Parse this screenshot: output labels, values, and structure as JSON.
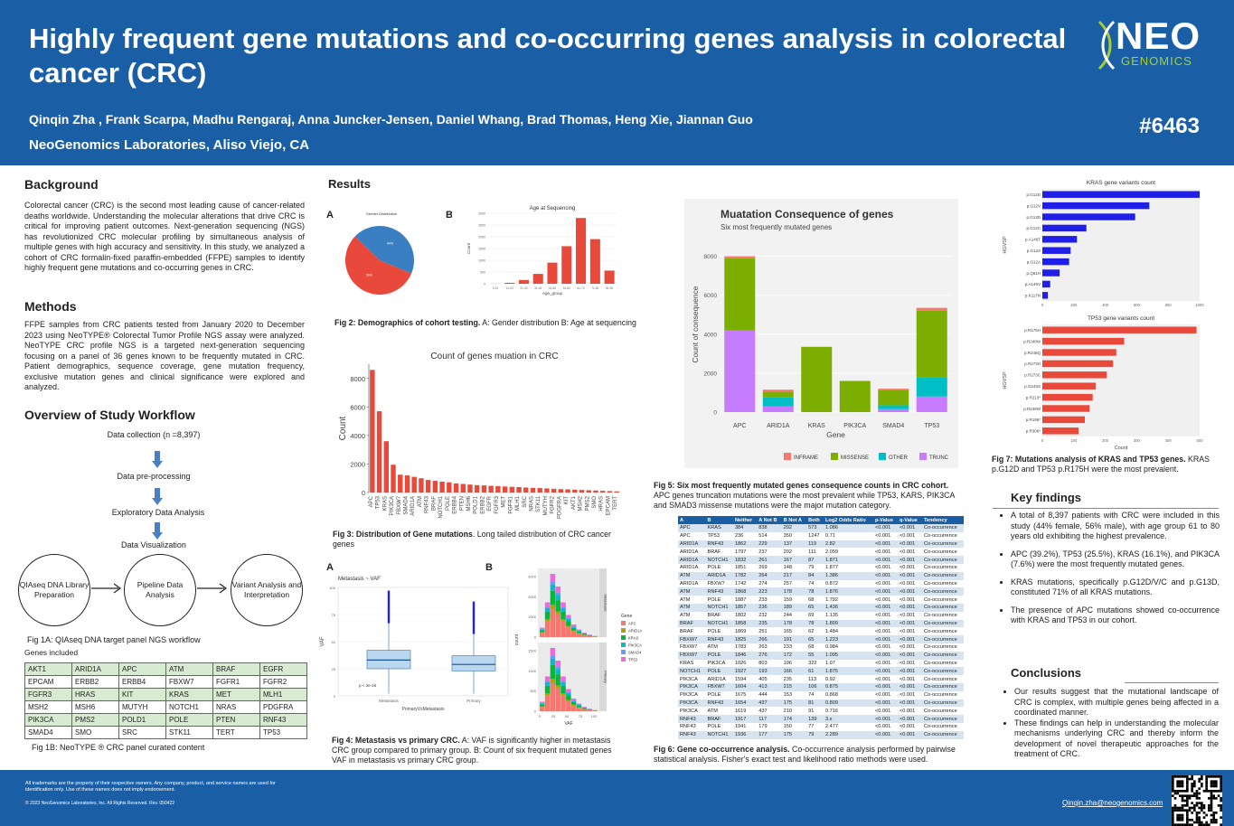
{
  "header": {
    "title": "Highly frequent gene mutations and co-occurring genes analysis in colorectal cancer (CRC)",
    "authors": "Qinqin Zha , Frank Scarpa, Madhu Rengaraj, Anna Juncker-Jensen, Daniel Whang, Brad Thomas, Heng Xie, Jiannan Guo",
    "affiliation": "NeoGenomics Laboratories, Aliso Viejo, CA",
    "poster_number": "#6463",
    "logo_main": "NEO",
    "logo_sub": "GENOMICS"
  },
  "background": {
    "heading": "Background",
    "text": "Colorectal cancer (CRC) is the second most leading cause of cancer-related deaths worldwide. Understanding the molecular alterations that drive CRC is critical for improving patient outcomes. Next-generation sequencing (NGS) has revolutionized CRC molecular profiling by simultaneous analysis of multiple genes with high accuracy and sensitivity. In this study, we analyzed a cohort of CRC formalin-fixed paraffin-embedded (FFPE) samples to identify highly frequent gene mutations and co-occurring genes in CRC."
  },
  "methods": {
    "heading": "Methods",
    "text": "FFPE samples from CRC patients tested from January 2020 to December 2023 using NeoTYPE® Colorectal Tumor Profile NGS assay were analyzed. NeoTYPE CRC profile NGS is a targeted next-generation sequencing focusing on a panel of 36 genes known to be frequently mutated in CRC. Patient demographics, sequence coverage, gene mutation frequency, exclusive mutation genes and clinical significance were explored and analyzed."
  },
  "workflow": {
    "heading": "Overview of Study Workflow",
    "steps": [
      "Data collection (n =8,397)",
      "Data pre-processing",
      "Exploratory Data Analysis",
      "Data Visualization"
    ],
    "circles": [
      "QIAseq DNA Library Preparation",
      "Pipeline Data Analysis",
      "Variant Analysis and Interpretation"
    ],
    "fig1a": "Fig 1A: QIAseq DNA target panel NGS workflow",
    "genes_heading": "Genes included",
    "genes": [
      [
        "AKT1",
        "ARID1A",
        "APC",
        "ATM",
        "BRAF",
        "EGFR"
      ],
      [
        "EPCAM",
        "ERBB2",
        "ERBB4",
        "FBXW7",
        "FGFR1",
        "FGFR2"
      ],
      [
        "FGFR3",
        "HRAS",
        "KIT",
        "KRAS",
        "MET",
        "MLH1"
      ],
      [
        "MSH2",
        "MSH6",
        "MUTYH",
        "NOTCH1",
        "NRAS",
        "PDGFRA"
      ],
      [
        "PIK3CA",
        "PMS2",
        "POLD1",
        "POLE",
        "PTEN",
        "RNF43"
      ],
      [
        "SMAD4",
        "SMO",
        "SRC",
        "STK11",
        "TERT",
        "TP53"
      ]
    ],
    "fig1b": "Fig 1B: NeoTYPE ® CRC panel curated content"
  },
  "results": {
    "heading": "Results",
    "fig2": {
      "label_a": "A",
      "label_b": "B",
      "pie_title": "Gender Distribution",
      "bar_title": "Age at Sequencing",
      "bar_xlabel": "Age_group",
      "bar_ylabel": "Count",
      "cap_bold": "Fig 2: Demographics of cohort testing.",
      "cap_rest": " A: Gender distribution B: Age at sequencing"
    },
    "fig3": {
      "title": "Count of genes muation in CRC",
      "ylabel": "Count",
      "cap_bold": "Fig 3: Distribution of Gene mutations",
      "cap_rest": ". Long tailed distribution of CRC cancer genes"
    },
    "fig4": {
      "label_a": "A",
      "label_b": "B",
      "box_title": "Metastasis ~ VAF",
      "box_xlabel": "PrimaryVsMetastasis",
      "box_ylabel": "VAF",
      "pval": "p < 2e-16",
      "cat_a": "Metastasis",
      "cat_b": "Primary",
      "hist_xlabel": "VAF",
      "hist_ylabel": "count",
      "strip_a": "Metastasis",
      "strip_b": "Primary",
      "legend_title": "Gene",
      "cap_bold": "Fig 4: Metastasis vs primary CRC.",
      "cap_rest": " A: VAF is significantly higher in metastasis CRC group compared to primary group. B: Count of six frequent mutated genes VAF in metastasis vs primary CRC group."
    },
    "fig5": {
      "title": "Muatation Consequence of genes",
      "subtitle": "Six most frequently mutated genes",
      "ylabel": "Count of consequence",
      "xlabel": "Gene",
      "legend_title": "Consequence",
      "cap_bold": "Fig 5: Six most frequently mutated genes consequence counts in CRC cohort.",
      "cap_rest": " APC genes truncation mutations were the most prevalent while TP53, KARS, PIK3CA and SMAD3 missense mutations were the major mutation category."
    },
    "fig6": {
      "headers": [
        "A",
        "B",
        "Neither",
        "A Not B",
        "B Not A",
        "Both",
        "Log2 Odds Ratio",
        "p-Value",
        "q-Value",
        "Tendency"
      ],
      "rows": [
        [
          "APC",
          "KRAS",
          "384",
          "838",
          "202",
          "573",
          "1.086",
          "<0.001",
          "<0.001",
          "Co-occurrence"
        ],
        [
          "APC",
          "TP53",
          "236",
          "514",
          "350",
          "1247",
          "0.71",
          "<0.001",
          "<0.001",
          "Co-occurrence"
        ],
        [
          "ARID1A",
          "RNF43",
          "1862",
          "229",
          "137",
          "119",
          "2.82",
          "<0.001",
          "<0.001",
          "Co-occurrence"
        ],
        [
          "ARID1A",
          "BRAF",
          "1797",
          "237",
          "202",
          "111",
          "2.059",
          "<0.001",
          "<0.001",
          "Co-occurrence"
        ],
        [
          "ARID1A",
          "NOTCH1",
          "1832",
          "261",
          "167",
          "87",
          "1.871",
          "<0.001",
          "<0.001",
          "Co-occurrence"
        ],
        [
          "ARID1A",
          "POLE",
          "1851",
          "269",
          "148",
          "79",
          "1.877",
          "<0.001",
          "<0.001",
          "Co-occurrence"
        ],
        [
          "ATM",
          "ARID1A",
          "1782",
          "264",
          "217",
          "84",
          "1.386",
          "<0.001",
          "<0.001",
          "Co-occurrence"
        ],
        [
          "ARID1A",
          "FBXW7",
          "1742",
          "274",
          "257",
          "74",
          "0.872",
          "<0.001",
          "<0.001",
          "Co-occurrence"
        ],
        [
          "ATM",
          "RNF43",
          "1868",
          "223",
          "178",
          "78",
          "1.876",
          "<0.001",
          "<0.001",
          "Co-occurrence"
        ],
        [
          "ATM",
          "POLE",
          "1887",
          "233",
          "159",
          "68",
          "1.792",
          "<0.001",
          "<0.001",
          "Co-occurrence"
        ],
        [
          "ATM",
          "NOTCH1",
          "1857",
          "236",
          "189",
          "65",
          "1.436",
          "<0.001",
          "<0.001",
          "Co-occurrence"
        ],
        [
          "ATM",
          "BRAF",
          "1802",
          "232",
          "244",
          "69",
          "1.135",
          "<0.001",
          "<0.001",
          "Co-occurrence"
        ],
        [
          "BRAF",
          "NOTCH1",
          "1858",
          "235",
          "178",
          "78",
          "1.809",
          "<0.001",
          "<0.001",
          "Co-occurrence"
        ],
        [
          "BRAF",
          "POLE",
          "1869",
          "251",
          "165",
          "62",
          "1.484",
          "<0.001",
          "<0.001",
          "Co-occurrence"
        ],
        [
          "FBXW7",
          "RNF43",
          "1825",
          "266",
          "191",
          "65",
          "1.223",
          "<0.001",
          "<0.001",
          "Co-occurrence"
        ],
        [
          "FBXW7",
          "ATM",
          "1783",
          "263",
          "233",
          "68",
          "0.984",
          "<0.001",
          "<0.001",
          "Co-occurrence"
        ],
        [
          "FBXW7",
          "POLE",
          "1846",
          "276",
          "172",
          "55",
          "1.095",
          "<0.001",
          "<0.001",
          "Co-occurrence"
        ],
        [
          "KRAS",
          "PIK3CA",
          "1026",
          "803",
          "196",
          "322",
          "1.07",
          "<0.001",
          "<0.001",
          "Co-occurrence"
        ],
        [
          "NOTCH1",
          "POLE",
          "1927",
          "193",
          "166",
          "61",
          "1.875",
          "<0.001",
          "<0.001",
          "Co-occurrence"
        ],
        [
          "PIK3CA",
          "ARID1A",
          "1594",
          "405",
          "235",
          "113",
          "0.92",
          "<0.001",
          "<0.001",
          "Co-occurrence"
        ],
        [
          "PIK3CA",
          "FBXW7",
          "1604",
          "413",
          "215",
          "106",
          "0.875",
          "<0.001",
          "<0.001",
          "Co-occurrence"
        ],
        [
          "PIK3CA",
          "POLE",
          "1675",
          "444",
          "153",
          "74",
          "0.868",
          "<0.001",
          "<0.001",
          "Co-occurrence"
        ],
        [
          "PIK3CA",
          "RNF43",
          "1654",
          "437",
          "175",
          "81",
          "0.809",
          "<0.001",
          "<0.001",
          "Co-occurrence"
        ],
        [
          "PIK3CA",
          "ATM",
          "1619",
          "437",
          "210",
          "91",
          "0.716",
          "<0.001",
          "<0.001",
          "Co-occurrence"
        ],
        [
          "RNF43",
          "BRAF",
          "1917",
          "117",
          "174",
          "139",
          "3.x",
          "<0.001",
          "<0.001",
          "Co-occurrence"
        ],
        [
          "RNF43",
          "POLE",
          "1941",
          "179",
          "150",
          "77",
          "2.477",
          "<0.001",
          "<0.001",
          "Co-occurrence"
        ],
        [
          "RNF43",
          "NOTCH1",
          "1936",
          "177",
          "175",
          "79",
          "2.289",
          "<0.001",
          "<0.001",
          "Co-occurrence"
        ]
      ],
      "cap_bold": "Fig 6: Gene co-occurrence analysis.",
      "cap_rest": " Co-occurrence analysis performed by pairwise statistical analysis. Fisher's exact test and likelihood ratio methods were used."
    },
    "fig7": {
      "kras_title": "KRAS gene variants count",
      "tp53_title": "TP53 gene variants count",
      "ylabel": "HGVSP",
      "xlabel": "Count",
      "cap_bold": "Fig 7: Mutations analysis of KRAS and TP53 genes.",
      "cap_rest": " KRAS p.G12D and TP53 p.R175H were the most prevalent."
    }
  },
  "key_findings": {
    "heading": "Key findings",
    "items": [
      "A total of 8,397 patients with CRC were included in this study (44% female, 56% male), with age group 61 to 80 years old exhibiting the highest prevalence.",
      "APC (39.2%), TP53 (25.5%), KRAS (16.1%), and PIK3CA (7.6%) were the most frequently mutated genes.",
      "KRAS mutations, specifically p.G12D/V/C and p.G13D, constituted 71% of all KRAS mutations.",
      "The presence of APC mutations showed co-occurrence with KRAS and TP53 in our cohort."
    ]
  },
  "conclusions": {
    "heading": "Conclusions",
    "items": [
      "Our results suggest that the mutational landscape of CRC is complex, with multiple genes being affected in a coordinated manner.",
      "These findings can help in understanding the molecular mechanisms underlying CRC and thereby inform the development of novel therapeutic approaches for the treatment of CRC."
    ]
  },
  "footer": {
    "legal": "All trademarks are the property of their respective owners. Any company, product, and service names are used for identification only. Use of these names does not imply endorsement.",
    "copyright": "© 2023 NeoGenomics Laboratories, Inc. All Rights Reserved. Rev. 050422",
    "email": "Qinqin.zha@neogenomics.com"
  },
  "colors": {
    "header_bg": "#1a5fa5",
    "accent_green": "#a6ce39",
    "bar_red": "#e8493a",
    "bar_blue": "#1f1fe8"
  },
  "chart_data": [
    {
      "id": "fig2a",
      "type": "pie",
      "title": "Gender Distribution",
      "slices": [
        {
          "label": "female",
          "value": 44,
          "color": "#3a7fc1"
        },
        {
          "label": "male",
          "value": 56,
          "color": "#e8493a"
        }
      ]
    },
    {
      "id": "fig2b",
      "type": "bar",
      "title": "Age at Sequencing",
      "xlabel": "Age_group",
      "ylabel": "Count",
      "categories": [
        "0-10",
        "11-20",
        "21-30",
        "31-40",
        "41-50",
        "51-60",
        "61-70",
        "71-80",
        "81-90"
      ],
      "values": [
        5,
        40,
        160,
        420,
        900,
        1600,
        2800,
        1900,
        560
      ],
      "ylim": [
        0,
        3000
      ]
    },
    {
      "id": "fig3",
      "type": "bar",
      "title": "Count of genes muation in CRC",
      "ylabel": "Count",
      "categories": [
        "APC",
        "TP53",
        "KRAS",
        "PIK3CA",
        "FBXW7",
        "SMAD4",
        "ARID1A",
        "ATM",
        "RNF43",
        "BRAF",
        "NOTCH1",
        "POLE",
        "ERBB4",
        "PTEN",
        "MSH6",
        "POLD1",
        "ERBB2",
        "EGFR",
        "FGFR3",
        "MET",
        "FGFR1",
        "MLH1",
        "SRC",
        "NRAS",
        "STK11",
        "MUTYH",
        "FGFR2",
        "PDGFRA",
        "KIT",
        "AKT1",
        "MSH2",
        "PMS2",
        "SMO",
        "HRAS",
        "EPCAM",
        "TERT"
      ],
      "values": [
        8600,
        5700,
        3600,
        1950,
        1250,
        1200,
        1100,
        1000,
        880,
        820,
        760,
        720,
        640,
        600,
        560,
        520,
        500,
        470,
        450,
        420,
        400,
        380,
        350,
        330,
        310,
        290,
        260,
        240,
        220,
        200,
        180,
        160,
        140,
        120,
        100,
        80
      ],
      "ylim": [
        0,
        9000
      ]
    },
    {
      "id": "fig4a",
      "type": "box",
      "title": "Metastasis ~ VAF",
      "xlabel": "PrimaryVsMetastasis",
      "ylabel": "VAF",
      "categories": [
        "Metastasis",
        "Primary"
      ],
      "boxes": [
        {
          "q1": 25,
          "median": 33,
          "q3": 42,
          "lo": 2,
          "hi": 67
        },
        {
          "q1": 23,
          "median": 29,
          "q3": 37,
          "lo": 2,
          "hi": 57
        }
      ],
      "ylim": [
        0,
        100
      ]
    },
    {
      "id": "fig4b",
      "type": "bar",
      "xlabel": "VAF",
      "ylabel": "count",
      "series": [
        {
          "name": "APC"
        },
        {
          "name": "ARID1A"
        },
        {
          "name": "KRAS"
        },
        {
          "name": "PIK3CA"
        },
        {
          "name": "SMAD4"
        },
        {
          "name": "TP53"
        }
      ],
      "panels": [
        "Metastasis",
        "Primary"
      ]
    },
    {
      "id": "fig5",
      "type": "bar",
      "title": "Muatation Consequence of genes",
      "subtitle": "Six most frequently mutated genes",
      "xlabel": "Gene",
      "ylabel": "Count of consequence",
      "categories": [
        "APC",
        "ARID1A",
        "KRAS",
        "PIK3CA",
        "SMAD4",
        "TP53"
      ],
      "series": [
        {
          "name": "TRUNC",
          "color": "#c77cff",
          "values": [
            4200,
            300,
            0,
            0,
            150,
            800
          ]
        },
        {
          "name": "OTHER",
          "color": "#00bfc4",
          "values": [
            0,
            450,
            0,
            0,
            200,
            1000
          ]
        },
        {
          "name": "MISSENSE",
          "color": "#7cae00",
          "values": [
            3700,
            300,
            3350,
            1600,
            800,
            3400
          ]
        },
        {
          "name": "INFRAME",
          "color": "#f8766d",
          "values": [
            100,
            100,
            0,
            0,
            50,
            150
          ]
        }
      ],
      "ylim": [
        0,
        9000
      ]
    },
    {
      "id": "fig7a",
      "type": "bar",
      "title": "KRAS gene variants count",
      "ylabel": "HGVSP",
      "categories": [
        "p.G12D",
        "p.G12V",
        "p.G13D",
        "p.G12C",
        "p.A146T",
        "p.G12S",
        "p.G12A",
        "p.Q61H",
        "p.A146V",
        "p.K117N"
      ],
      "values": [
        1010,
        680,
        590,
        280,
        220,
        180,
        170,
        110,
        50,
        35
      ],
      "xlim": [
        0,
        1000
      ]
    },
    {
      "id": "fig7b",
      "type": "bar",
      "title": "TP53 gene variants count",
      "ylabel": "HGVSP",
      "xlabel": "Count",
      "categories": [
        "p.R175H",
        "p.R248W",
        "p.R248Q",
        "p.R273H",
        "p.R273C",
        "p.G245S",
        "p.R213*",
        "p.R248W",
        "p.R196*",
        "p.R306*"
      ],
      "values": [
        490,
        260,
        235,
        225,
        205,
        170,
        160,
        150,
        135,
        115
      ],
      "xlim": [
        0,
        500
      ]
    }
  ]
}
